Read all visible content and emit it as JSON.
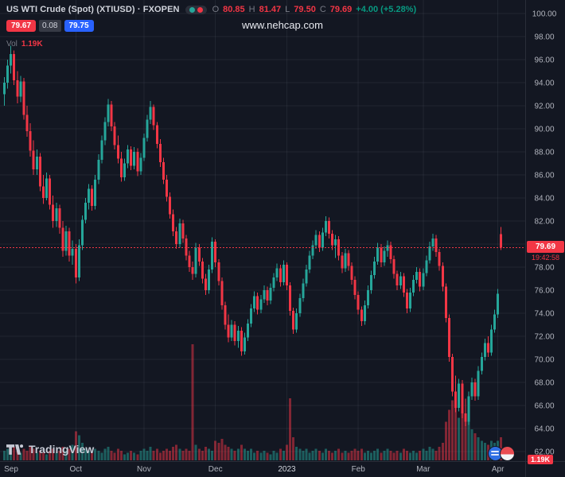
{
  "header": {
    "symbol_title": "US WTI Crude (Spot) (XTIUSD) · FXOPEN",
    "ohlc": {
      "o_label": "O",
      "o": "80.85",
      "h_label": "H",
      "h": "81.47",
      "l_label": "L",
      "l": "79.50",
      "c_label": "C",
      "c": "79.69",
      "change": "+4.00 (+5.28%)"
    },
    "bid": "79.67",
    "spread": "0.08",
    "ask": "79.75",
    "vol_label": "Vol",
    "vol_value": "1.19K"
  },
  "watermark": "www.nehcap.com",
  "last_price_label": {
    "price": "79.69",
    "countdown": "19:42:58"
  },
  "volume_axis_badge": "1.19K",
  "logo": {
    "text": "TradingView"
  },
  "colors": {
    "background": "#131722",
    "up": "#26a69a",
    "down": "#f23645",
    "vol_up": "rgba(38,166,154,0.5)",
    "vol_down": "rgba(242,54,69,0.5)",
    "grid": "rgba(134,142,160,0.12)",
    "separator": "#2a2e39",
    "axis_text": "#b2b5be",
    "axis_text_strong": "#d1d4dc",
    "bid_badge": "#f23645",
    "ask_badge": "#2962ff"
  },
  "chart_data": {
    "type": "candlestick",
    "title": "US WTI Crude (Spot) (XTIUSD) - FXOPEN daily candles with volume",
    "last_price": 79.69,
    "y_axis": {
      "min": 62,
      "max": 100,
      "step": 2,
      "tick_format": "2dp"
    },
    "x_labels": [
      {
        "label": "Sep",
        "index": 0
      },
      {
        "label": "Oct",
        "index": 22
      },
      {
        "label": "Nov",
        "index": 43
      },
      {
        "label": "Dec",
        "index": 65
      },
      {
        "label": "2023",
        "index": 87,
        "strong": true
      },
      {
        "label": "Feb",
        "index": 109
      },
      {
        "label": "Mar",
        "index": 129
      },
      {
        "label": "Apr",
        "index": 152
      }
    ],
    "candles_format": [
      "open",
      "high",
      "low",
      "close",
      "volume_k"
    ],
    "candles": [
      [
        93.0,
        94.5,
        92.0,
        94.0,
        0.5
      ],
      [
        94.0,
        96.0,
        93.5,
        95.5,
        0.6
      ],
      [
        95.5,
        97.2,
        94.8,
        96.5,
        0.8
      ],
      [
        96.5,
        96.8,
        93.8,
        94.2,
        0.7
      ],
      [
        94.2,
        95.0,
        92.2,
        92.8,
        0.5
      ],
      [
        92.8,
        94.6,
        92.3,
        94.1,
        0.4
      ],
      [
        94.1,
        94.4,
        90.8,
        91.2,
        0.6
      ],
      [
        91.2,
        92.0,
        89.3,
        89.8,
        0.5
      ],
      [
        89.8,
        90.5,
        87.6,
        88.1,
        0.7
      ],
      [
        88.1,
        89.0,
        86.0,
        86.5,
        0.6
      ],
      [
        86.5,
        88.2,
        86.0,
        87.6,
        0.4
      ],
      [
        87.6,
        87.9,
        84.6,
        85.0,
        0.5
      ],
      [
        85.0,
        86.0,
        83.5,
        84.0,
        0.4
      ],
      [
        84.0,
        86.2,
        83.8,
        85.7,
        0.3
      ],
      [
        85.7,
        86.0,
        83.0,
        83.4,
        0.5
      ],
      [
        83.4,
        84.2,
        81.4,
        82.0,
        0.6
      ],
      [
        82.0,
        83.6,
        81.5,
        83.1,
        0.4
      ],
      [
        83.1,
        83.4,
        80.9,
        81.4,
        0.5
      ],
      [
        81.4,
        82.0,
        78.9,
        79.4,
        0.7
      ],
      [
        79.4,
        81.6,
        79.0,
        81.1,
        0.5
      ],
      [
        81.1,
        81.4,
        78.5,
        79.0,
        0.6
      ],
      [
        79.0,
        80.3,
        78.2,
        79.6,
        0.8
      ],
      [
        79.6,
        80.0,
        76.6,
        77.1,
        1.5
      ],
      [
        77.1,
        80.4,
        76.8,
        79.9,
        1.3
      ],
      [
        79.9,
        82.5,
        79.5,
        82.1,
        0.9
      ],
      [
        82.1,
        84.0,
        81.8,
        83.6,
        0.6
      ],
      [
        83.6,
        85.2,
        83.0,
        84.8,
        0.5
      ],
      [
        84.8,
        85.1,
        82.9,
        83.3,
        0.4
      ],
      [
        83.3,
        86.0,
        83.0,
        85.6,
        0.6
      ],
      [
        85.6,
        87.8,
        85.2,
        87.3,
        0.5
      ],
      [
        87.3,
        89.4,
        87.0,
        89.0,
        0.4
      ],
      [
        89.0,
        91.0,
        88.6,
        90.6,
        0.6
      ],
      [
        90.6,
        92.6,
        90.2,
        92.1,
        0.7
      ],
      [
        92.1,
        92.4,
        89.8,
        90.2,
        0.5
      ],
      [
        90.2,
        90.6,
        88.2,
        88.6,
        0.4
      ],
      [
        88.6,
        89.4,
        87.0,
        87.4,
        0.6
      ],
      [
        87.4,
        88.0,
        85.4,
        85.8,
        0.5
      ],
      [
        85.8,
        87.4,
        85.5,
        87.0,
        0.3
      ],
      [
        87.0,
        88.6,
        86.6,
        88.2,
        0.4
      ],
      [
        88.2,
        88.5,
        86.4,
        86.8,
        0.5
      ],
      [
        86.8,
        88.4,
        86.5,
        88.0,
        0.4
      ],
      [
        88.0,
        88.3,
        85.9,
        86.3,
        0.3
      ],
      [
        86.3,
        87.9,
        86.0,
        87.5,
        0.5
      ],
      [
        87.5,
        89.6,
        87.2,
        89.2,
        0.6
      ],
      [
        89.2,
        91.2,
        88.9,
        90.8,
        0.5
      ],
      [
        90.8,
        92.4,
        90.4,
        91.9,
        0.7
      ],
      [
        91.9,
        92.1,
        89.9,
        90.3,
        0.5
      ],
      [
        90.3,
        90.6,
        88.3,
        88.7,
        0.6
      ],
      [
        88.7,
        89.1,
        86.7,
        87.1,
        0.4
      ],
      [
        87.1,
        87.5,
        85.2,
        85.6,
        0.5
      ],
      [
        85.6,
        86.0,
        83.7,
        84.1,
        0.6
      ],
      [
        84.1,
        84.5,
        82.2,
        82.6,
        0.5
      ],
      [
        82.6,
        83.0,
        80.7,
        81.1,
        0.7
      ],
      [
        81.1,
        81.5,
        79.6,
        80.0,
        0.8
      ],
      [
        80.0,
        82.2,
        79.7,
        81.8,
        0.6
      ],
      [
        81.8,
        82.1,
        80.1,
        80.5,
        0.5
      ],
      [
        80.5,
        80.8,
        78.6,
        79.0,
        0.6
      ],
      [
        79.0,
        79.4,
        77.6,
        78.0,
        0.5
      ],
      [
        78.0,
        78.5,
        76.9,
        77.4,
        6.0
      ],
      [
        77.4,
        80.1,
        77.1,
        79.7,
        0.8
      ],
      [
        79.7,
        80.0,
        78.1,
        78.5,
        0.6
      ],
      [
        78.5,
        78.8,
        76.6,
        77.0,
        0.5
      ],
      [
        77.0,
        77.4,
        75.6,
        76.0,
        0.7
      ],
      [
        76.0,
        78.2,
        75.7,
        77.8,
        0.6
      ],
      [
        77.8,
        80.6,
        77.5,
        80.2,
        0.5
      ],
      [
        80.2,
        80.4,
        78.0,
        78.4,
        1.0
      ],
      [
        78.4,
        78.7,
        76.4,
        76.8,
        0.9
      ],
      [
        76.8,
        77.1,
        74.3,
        74.7,
        1.1
      ],
      [
        74.7,
        75.0,
        72.6,
        73.0,
        0.8
      ],
      [
        73.0,
        73.9,
        71.5,
        71.9,
        0.7
      ],
      [
        71.9,
        73.4,
        71.6,
        73.0,
        0.6
      ],
      [
        73.0,
        73.3,
        71.2,
        71.6,
        0.5
      ],
      [
        71.6,
        72.9,
        71.0,
        72.5,
        0.6
      ],
      [
        72.5,
        72.8,
        70.3,
        70.7,
        0.8
      ],
      [
        70.7,
        72.3,
        70.4,
        71.9,
        0.6
      ],
      [
        71.9,
        73.5,
        71.6,
        73.1,
        0.5
      ],
      [
        73.1,
        74.8,
        72.8,
        74.4,
        0.6
      ],
      [
        74.4,
        75.9,
        74.1,
        75.5,
        0.4
      ],
      [
        75.5,
        75.8,
        73.9,
        74.3,
        0.5
      ],
      [
        74.3,
        75.6,
        74.0,
        75.2,
        0.4
      ],
      [
        75.2,
        76.4,
        74.9,
        76.0,
        0.5
      ],
      [
        76.0,
        76.3,
        74.7,
        75.1,
        0.4
      ],
      [
        75.1,
        76.6,
        74.8,
        76.2,
        0.3
      ],
      [
        76.2,
        77.5,
        75.9,
        77.1,
        0.5
      ],
      [
        77.1,
        78.3,
        76.8,
        77.9,
        0.4
      ],
      [
        77.9,
        78.2,
        76.3,
        76.7,
        0.6
      ],
      [
        76.7,
        78.6,
        76.4,
        78.2,
        0.5
      ],
      [
        78.2,
        78.4,
        76.0,
        76.4,
        0.8
      ],
      [
        76.4,
        76.7,
        73.8,
        74.2,
        3.2
      ],
      [
        74.2,
        74.5,
        72.2,
        72.6,
        1.2
      ],
      [
        72.6,
        74.4,
        72.3,
        74.0,
        0.7
      ],
      [
        74.0,
        75.7,
        73.7,
        75.3,
        0.6
      ],
      [
        75.3,
        77.0,
        75.0,
        76.6,
        0.5
      ],
      [
        76.6,
        78.2,
        76.3,
        77.8,
        0.6
      ],
      [
        77.8,
        79.4,
        77.5,
        79.0,
        0.4
      ],
      [
        79.0,
        80.3,
        78.7,
        79.9,
        0.5
      ],
      [
        79.9,
        81.2,
        79.6,
        80.8,
        0.6
      ],
      [
        80.8,
        81.1,
        79.3,
        79.7,
        0.5
      ],
      [
        79.7,
        81.4,
        79.4,
        81.0,
        0.4
      ],
      [
        81.0,
        82.4,
        80.7,
        82.0,
        0.6
      ],
      [
        82.0,
        82.3,
        80.5,
        80.9,
        0.5
      ],
      [
        80.9,
        81.2,
        79.5,
        79.9,
        0.4
      ],
      [
        79.9,
        80.8,
        78.8,
        80.4,
        0.5
      ],
      [
        80.4,
        80.7,
        78.6,
        79.0,
        0.6
      ],
      [
        79.0,
        79.3,
        77.5,
        77.9,
        0.4
      ],
      [
        77.9,
        79.6,
        77.6,
        79.2,
        0.5
      ],
      [
        79.2,
        79.5,
        77.7,
        78.1,
        0.4
      ],
      [
        78.1,
        78.4,
        76.5,
        76.9,
        0.5
      ],
      [
        76.9,
        77.2,
        75.2,
        75.6,
        0.6
      ],
      [
        75.6,
        75.9,
        73.9,
        74.3,
        0.5
      ],
      [
        74.3,
        74.6,
        72.9,
        73.3,
        0.6
      ],
      [
        73.3,
        75.1,
        73.0,
        74.7,
        0.4
      ],
      [
        74.7,
        76.4,
        74.4,
        76.0,
        0.5
      ],
      [
        76.0,
        77.7,
        75.7,
        77.3,
        0.4
      ],
      [
        77.3,
        78.9,
        77.0,
        78.5,
        0.5
      ],
      [
        78.5,
        80.1,
        78.2,
        79.7,
        0.6
      ],
      [
        79.7,
        80.0,
        78.0,
        78.4,
        0.4
      ],
      [
        78.4,
        79.8,
        78.1,
        79.4,
        0.5
      ],
      [
        79.4,
        80.3,
        78.9,
        79.9,
        0.6
      ],
      [
        79.9,
        80.2,
        78.3,
        78.7,
        0.5
      ],
      [
        78.7,
        79.0,
        77.0,
        77.4,
        0.4
      ],
      [
        77.4,
        77.7,
        76.0,
        76.4,
        0.5
      ],
      [
        76.4,
        77.6,
        76.1,
        77.2,
        0.4
      ],
      [
        77.2,
        77.5,
        75.4,
        75.8,
        0.6
      ],
      [
        75.8,
        76.1,
        74.0,
        74.4,
        0.5
      ],
      [
        74.4,
        76.2,
        74.1,
        75.8,
        0.4
      ],
      [
        75.8,
        77.3,
        75.5,
        76.9,
        0.5
      ],
      [
        76.9,
        78.0,
        76.6,
        77.6,
        0.4
      ],
      [
        77.6,
        77.9,
        75.9,
        76.3,
        0.5
      ],
      [
        76.3,
        77.9,
        76.0,
        77.5,
        0.6
      ],
      [
        77.5,
        79.0,
        77.2,
        78.6,
        0.5
      ],
      [
        78.6,
        80.2,
        78.3,
        79.8,
        0.7
      ],
      [
        79.8,
        80.9,
        79.4,
        80.5,
        0.6
      ],
      [
        80.5,
        80.8,
        78.9,
        79.3,
        0.5
      ],
      [
        79.3,
        79.6,
        77.7,
        78.1,
        0.7
      ],
      [
        78.1,
        78.4,
        75.9,
        76.3,
        0.9
      ],
      [
        76.3,
        76.6,
        73.2,
        73.6,
        2.0
      ],
      [
        73.6,
        73.9,
        69.8,
        70.2,
        2.6
      ],
      [
        70.2,
        70.5,
        66.8,
        67.2,
        3.1
      ],
      [
        67.2,
        68.6,
        65.4,
        65.8,
        2.8
      ],
      [
        65.8,
        68.3,
        65.5,
        67.9,
        2.2
      ],
      [
        67.9,
        68.2,
        64.9,
        65.3,
        2.5
      ],
      [
        65.3,
        66.6,
        64.2,
        64.6,
        2.3
      ],
      [
        64.6,
        67.2,
        64.3,
        66.8,
        2.0
      ],
      [
        66.8,
        68.4,
        66.5,
        68.0,
        1.6
      ],
      [
        68.0,
        68.3,
        66.4,
        66.8,
        1.4
      ],
      [
        66.8,
        69.4,
        66.5,
        69.0,
        1.2
      ],
      [
        69.0,
        70.6,
        68.7,
        70.2,
        1.0
      ],
      [
        70.2,
        71.8,
        69.9,
        71.4,
        0.9
      ],
      [
        71.4,
        72.0,
        70.2,
        70.6,
        0.8
      ],
      [
        70.6,
        73.0,
        70.3,
        72.6,
        1.0
      ],
      [
        72.6,
        74.3,
        72.3,
        73.9,
        0.9
      ],
      [
        73.9,
        76.1,
        73.6,
        75.7,
        1.0
      ],
      [
        80.85,
        81.47,
        79.5,
        79.69,
        1.19
      ]
    ]
  }
}
